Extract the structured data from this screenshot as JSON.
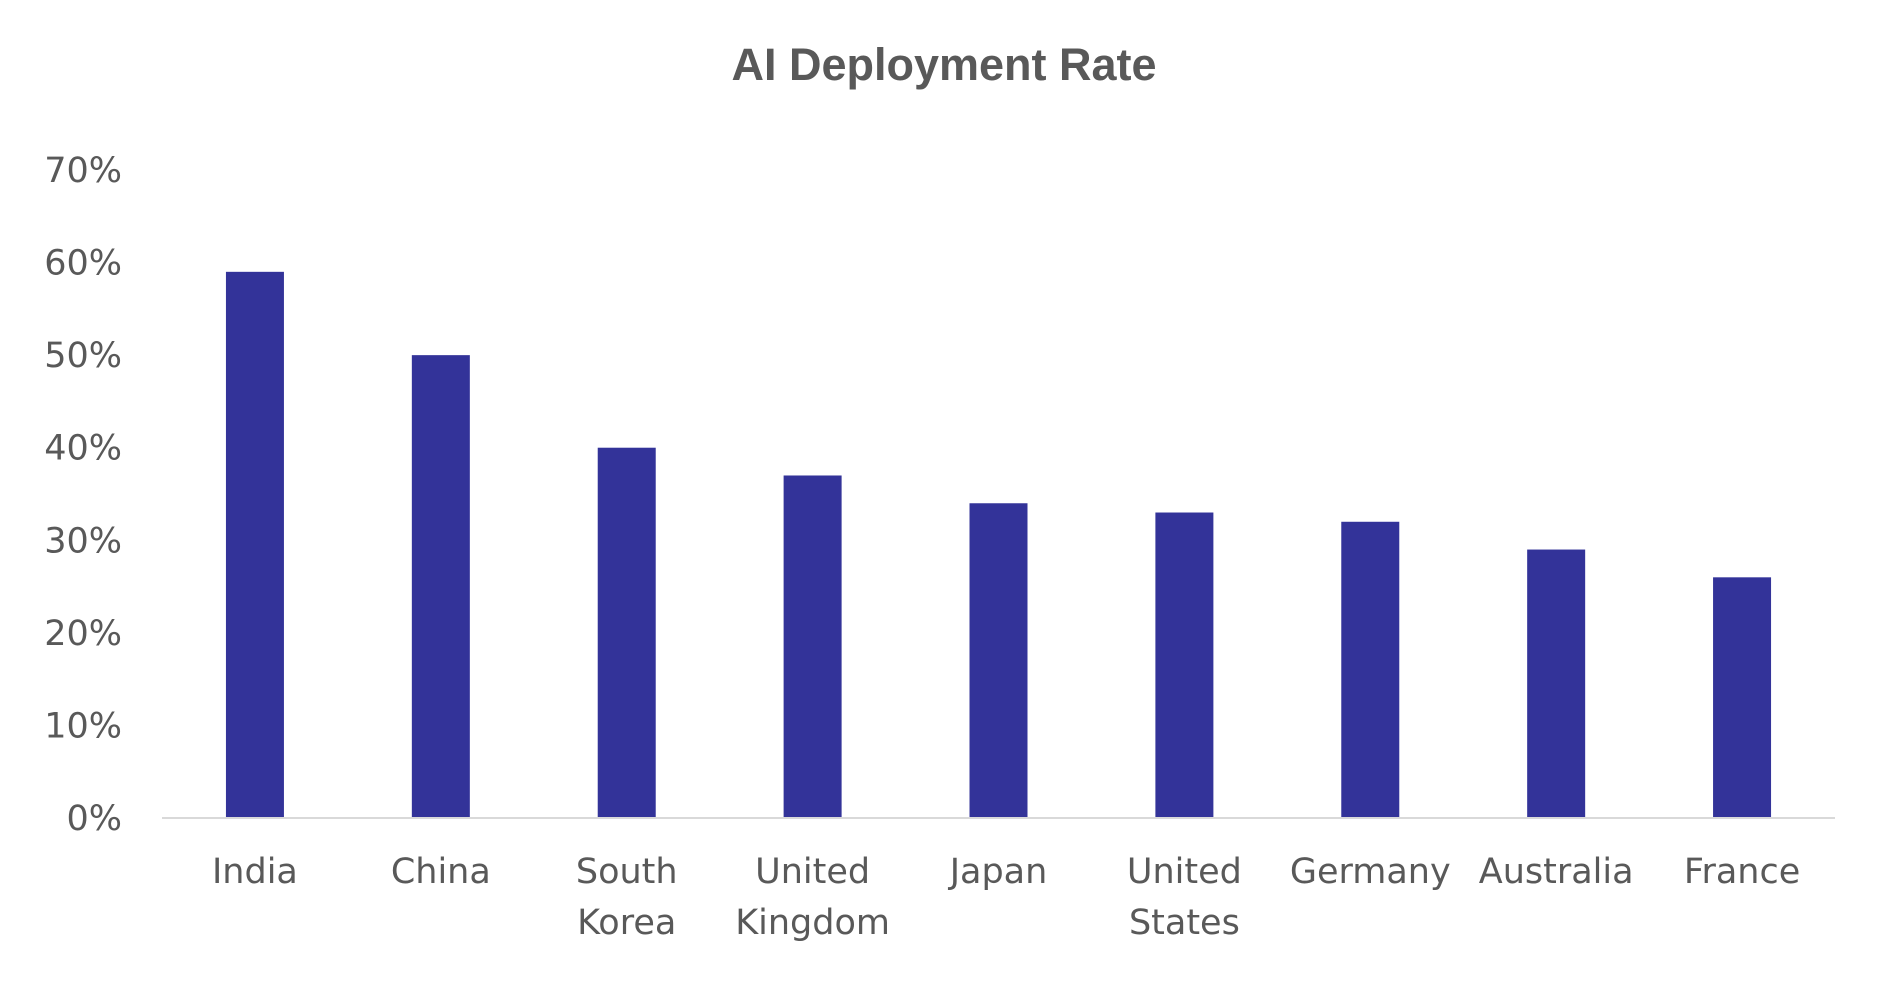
{
  "chart_data": {
    "type": "bar",
    "title": "AI Deployment Rate",
    "xlabel": "",
    "ylabel": "",
    "categories": [
      "India",
      "China",
      "South Korea",
      "United Kingdom",
      "Japan",
      "United States",
      "Germany",
      "Australia",
      "France"
    ],
    "category_lines": [
      [
        "India"
      ],
      [
        "China"
      ],
      [
        "South",
        "Korea"
      ],
      [
        "United",
        "Kingdom"
      ],
      [
        "Japan"
      ],
      [
        "United",
        "States"
      ],
      [
        "Germany"
      ],
      [
        "Australia"
      ],
      [
        "France"
      ]
    ],
    "values": [
      59,
      50,
      40,
      37,
      34,
      33,
      32,
      29,
      26
    ],
    "ylim": [
      0,
      70
    ],
    "yticks": [
      0,
      10,
      20,
      30,
      40,
      50,
      60,
      70
    ],
    "ytick_labels": [
      "0%",
      "10%",
      "20%",
      "30%",
      "40%",
      "50%",
      "60%",
      "70%"
    ],
    "grid": false,
    "legend": "none",
    "colors": {
      "bar": "#333399",
      "axis": "#d9d9d9",
      "text": "#595959"
    }
  }
}
